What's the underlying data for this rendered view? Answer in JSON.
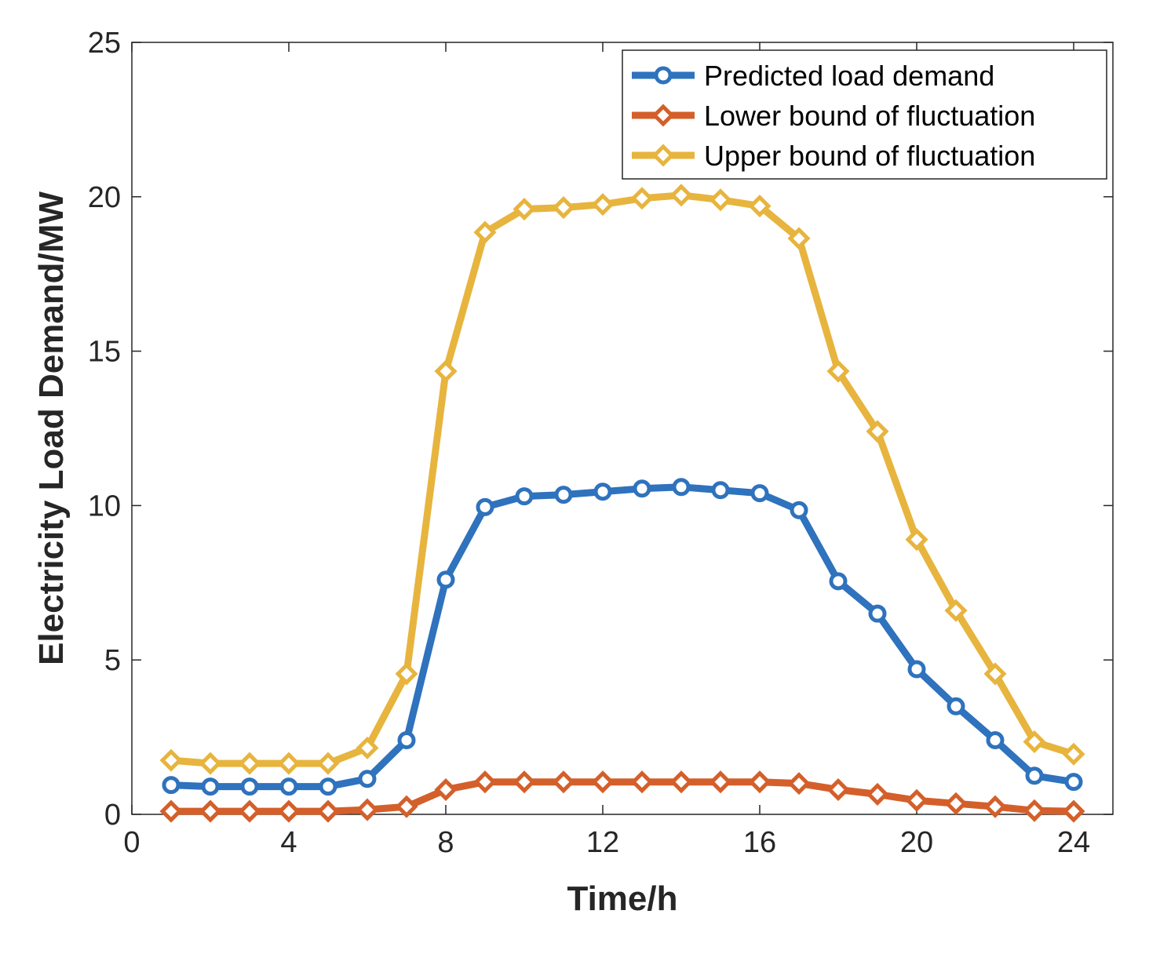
{
  "chart_data": {
    "type": "line",
    "xlabel": "Time/h",
    "ylabel": "Electricity Load Demand/MW",
    "xlim": [
      0,
      25
    ],
    "ylim": [
      0,
      25
    ],
    "xticks": [
      0,
      4,
      8,
      12,
      16,
      20,
      24
    ],
    "yticks": [
      0,
      5,
      10,
      15,
      20,
      25
    ],
    "grid": false,
    "legend_position": "top-right",
    "x": [
      1,
      2,
      3,
      4,
      5,
      6,
      7,
      8,
      9,
      10,
      11,
      12,
      13,
      14,
      15,
      16,
      17,
      18,
      19,
      20,
      21,
      22,
      23,
      24
    ],
    "series": [
      {
        "name": "Predicted load demand",
        "color": "#2f72bd",
        "marker": "circle-icon",
        "values": [
          0.95,
          0.9,
          0.9,
          0.9,
          0.9,
          1.15,
          2.4,
          7.6,
          9.95,
          10.3,
          10.35,
          10.45,
          10.55,
          10.6,
          10.5,
          10.4,
          9.85,
          7.55,
          6.5,
          4.7,
          3.5,
          2.4,
          1.25,
          1.05
        ]
      },
      {
        "name": "Lower bound of fluctuation",
        "color": "#d45f2a",
        "marker": "diamond-icon",
        "values": [
          0.1,
          0.1,
          0.1,
          0.1,
          0.1,
          0.15,
          0.25,
          0.8,
          1.05,
          1.05,
          1.05,
          1.05,
          1.05,
          1.05,
          1.05,
          1.05,
          1.0,
          0.8,
          0.65,
          0.45,
          0.35,
          0.25,
          0.12,
          0.1
        ]
      },
      {
        "name": "Upper bound of fluctuation",
        "color": "#e7b43e",
        "marker": "diamond-icon",
        "values": [
          1.75,
          1.65,
          1.65,
          1.65,
          1.65,
          2.15,
          4.55,
          14.35,
          18.85,
          19.6,
          19.65,
          19.75,
          19.95,
          20.05,
          19.9,
          19.7,
          18.65,
          14.35,
          12.4,
          8.9,
          6.6,
          4.55,
          2.35,
          1.95
        ]
      }
    ]
  }
}
